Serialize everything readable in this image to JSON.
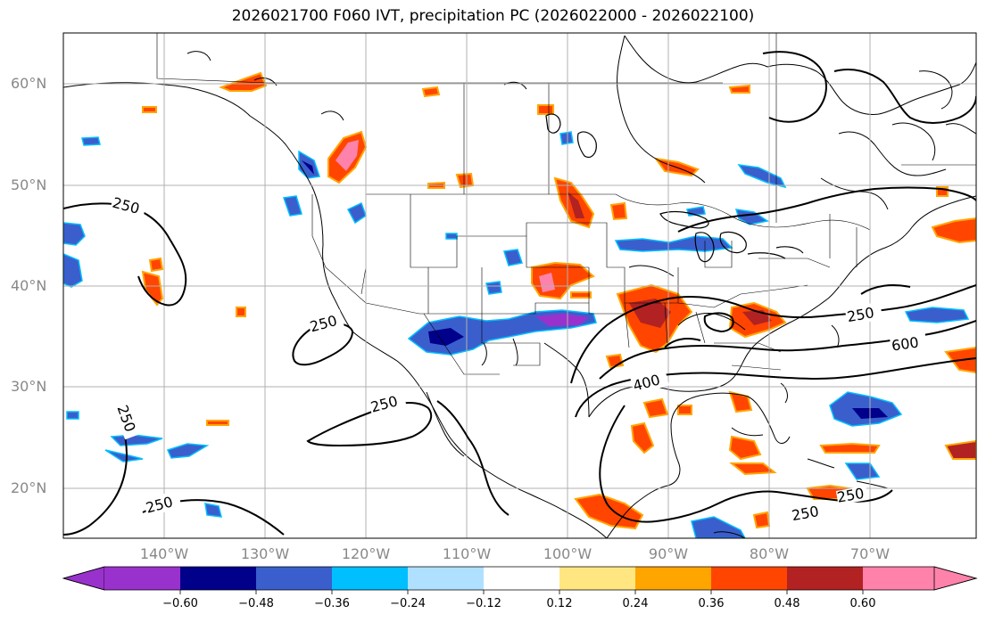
{
  "title": "2026021700 F060 IVT, precipitation PC (2026022000 - 2026022100)",
  "lat_labels": [
    "60°N",
    "50°N",
    "40°N",
    "30°N",
    "20°N"
  ],
  "lon_labels": [
    "140°W",
    "130°W",
    "120°W",
    "110°W",
    "100°W",
    "90°W",
    "80°W",
    "70°W"
  ],
  "colorbar": {
    "ticks": [
      "−0.60",
      "−0.48",
      "−0.36",
      "−0.24",
      "−0.12",
      "0.12",
      "0.24",
      "0.36",
      "0.48",
      "0.60"
    ],
    "colors": [
      "#9932cc",
      "#00008b",
      "#3a5fcd",
      "#00bfff",
      "#b0e0ff",
      "#ffffff",
      "#ffe680",
      "#ffa500",
      "#ff4500",
      "#b22222",
      "#ff82ab"
    ]
  },
  "contour_labels": [
    "250",
    "250",
    "250",
    "250",
    "250",
    "250",
    "250",
    "250",
    "400",
    "600"
  ],
  "colors": {
    "pos_low": "#ffe680",
    "pos_mid": "#ffa500",
    "pos_high": "#ff4500",
    "pos_max": "#b22222",
    "pos_ext": "#ff82ab",
    "neg_low": "#b0e0ff",
    "neg_mid": "#00bfff",
    "neg_high": "#3a5fcd",
    "neg_max": "#00008b",
    "neg_ext": "#9932cc"
  }
}
